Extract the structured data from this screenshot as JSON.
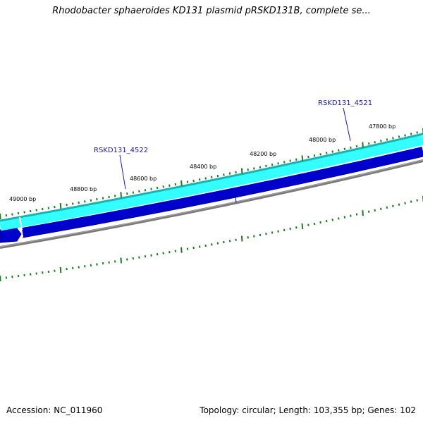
{
  "title": "Rhodobacter sphaeroides KD131 plasmid pRSKD131B, complete se...",
  "accession": "Accession: NC_011960",
  "summary": "Topology: circular; Length: 103,355 bp; Genes: 102",
  "ticks": [
    {
      "label": "49000 bp"
    },
    {
      "label": "48800 bp"
    },
    {
      "label": "48600 bp"
    },
    {
      "label": "48400 bp"
    },
    {
      "label": "48200 bp"
    },
    {
      "label": "48000 bp"
    },
    {
      "label": "47800 bp"
    }
  ],
  "genes": [
    {
      "label": "RSKD131_4522"
    },
    {
      "label": "RSKD131_4521"
    }
  ],
  "colors": {
    "tick": "#1f7a1f",
    "cyan_track": "#33ffff",
    "cyan_edge": "#1ab3b3",
    "blue_track": "#0000cc",
    "grey_track": "#7a7a7a",
    "gene_label": "#1a1aaa"
  }
}
